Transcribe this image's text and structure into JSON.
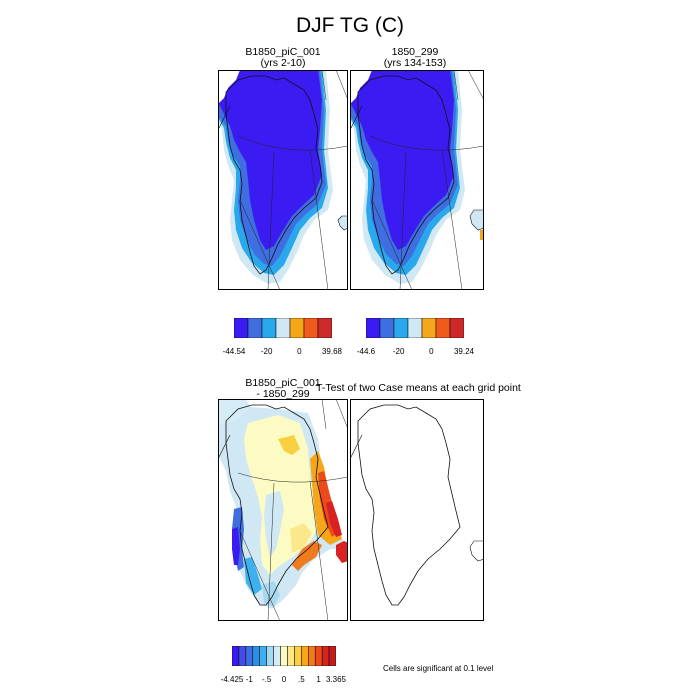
{
  "figure": {
    "title": "DJF TG (C)"
  },
  "panels": {
    "case1": {
      "title_line1": "B1850_piC_001",
      "title_line2": "(yrs 2-10)"
    },
    "case2": {
      "title_line1": "1850_299",
      "title_line2": "(yrs 134-153)"
    },
    "diff": {
      "title_line1": "B1850_piC_001",
      "title_line2": "- 1850_299"
    },
    "ttest": {
      "title": "T-Test of two Case means at each grid point"
    }
  },
  "colorbars": {
    "case1": {
      "colors": [
        "#3a1cf2",
        "#3f6ee0",
        "#2aa8ee",
        "#cfe8f4",
        "#f6a61a",
        "#f05a1c",
        "#cc2a2a"
      ],
      "labels": [
        "-44.54",
        "-20",
        "0",
        "39.68"
      ]
    },
    "case2": {
      "colors": [
        "#3a1cf2",
        "#3f6ee0",
        "#2aa8ee",
        "#cfe8f4",
        "#f6a61a",
        "#f05a1c",
        "#cc2a2a"
      ],
      "labels": [
        "-44.6",
        "-20",
        "0",
        "39.24"
      ]
    },
    "diff": {
      "colors": [
        "#3a1cf2",
        "#3f4fe8",
        "#3f6ee0",
        "#2e8fe6",
        "#3fb0ee",
        "#a8d8ee",
        "#d4ecf6",
        "#fdfbc4",
        "#fbe88a",
        "#f8d040",
        "#f6a61a",
        "#f07a1e",
        "#ec4a1c",
        "#d82222",
        "#c01e1e"
      ],
      "labels": [
        "-4.425",
        "-1",
        "-.5",
        "0",
        ".5",
        "1",
        "3.365"
      ]
    }
  },
  "significance_note": "Cells are significant at 0.1 level",
  "colors": {
    "deep_blue": "#3a1cf2",
    "mid_blue": "#3f6ee0",
    "light_blue": "#2aa8ee",
    "pale_blue": "#cfe8f4",
    "pale_yellow": "#fdfbc4",
    "orange": "#f6a61a",
    "red": "#d82222"
  }
}
